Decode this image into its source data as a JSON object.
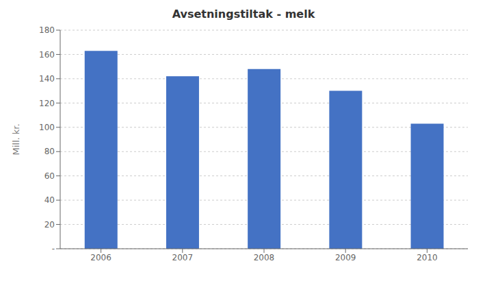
{
  "chart_data": {
    "type": "bar",
    "title": "Avsetningstiltak - melk",
    "categories": [
      "2006",
      "2007",
      "2008",
      "2009",
      "2010"
    ],
    "values": [
      163,
      142,
      148,
      130,
      103
    ],
    "color": "#4472C4",
    "ylabel": "Mill. kr.",
    "ylim": [
      0,
      180
    ],
    "yticks": [
      {
        "value": 0,
        "label": "-"
      },
      20,
      40,
      60,
      80,
      100,
      120,
      140,
      160,
      180
    ],
    "grid": true
  }
}
